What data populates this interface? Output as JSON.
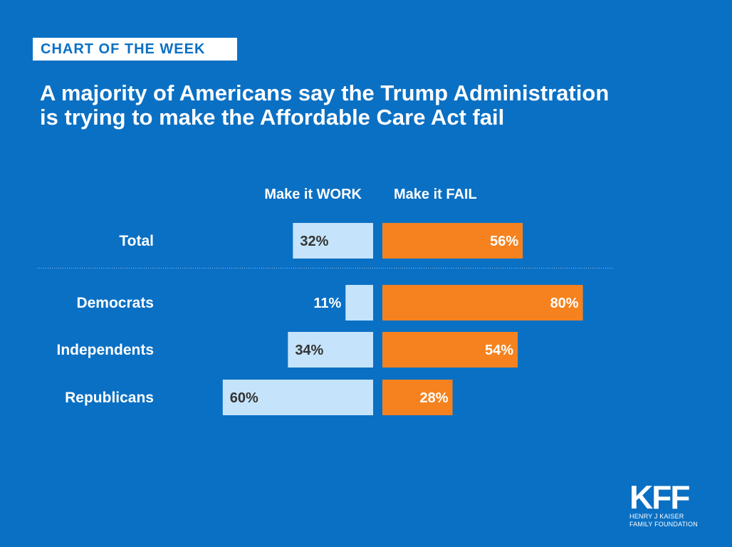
{
  "badge": "CHART OF THE WEEK",
  "title": {
    "line1": "A majority of Americans say the Trump Administration",
    "line2": "is trying to make the Affordable Care Act fail"
  },
  "colors": {
    "background": "#0a70c4",
    "work_bar": "#c5e4fb",
    "fail_bar": "#f5821f",
    "work_label": "#333333",
    "text": "#ffffff"
  },
  "logo": {
    "mark": "KFF",
    "line1": "HENRY J KAISER",
    "line2": "FAMILY FOUNDATION"
  },
  "chart_data": {
    "type": "bar",
    "orientation": "diverging-horizontal",
    "categories": [
      "Total",
      "Democrats",
      "Independents",
      "Republicans"
    ],
    "series": [
      {
        "name": "Make it WORK",
        "values": [
          32,
          11,
          34,
          60
        ],
        "labels": [
          "32%",
          "11%",
          "34%",
          "60%"
        ]
      },
      {
        "name": "Make it FAIL",
        "values": [
          56,
          80,
          54,
          28
        ],
        "labels": [
          "56%",
          "80%",
          "54%",
          "28%"
        ]
      }
    ],
    "unit": "%",
    "xlim": [
      0,
      100
    ],
    "grid": false,
    "separator_after": "Total"
  }
}
